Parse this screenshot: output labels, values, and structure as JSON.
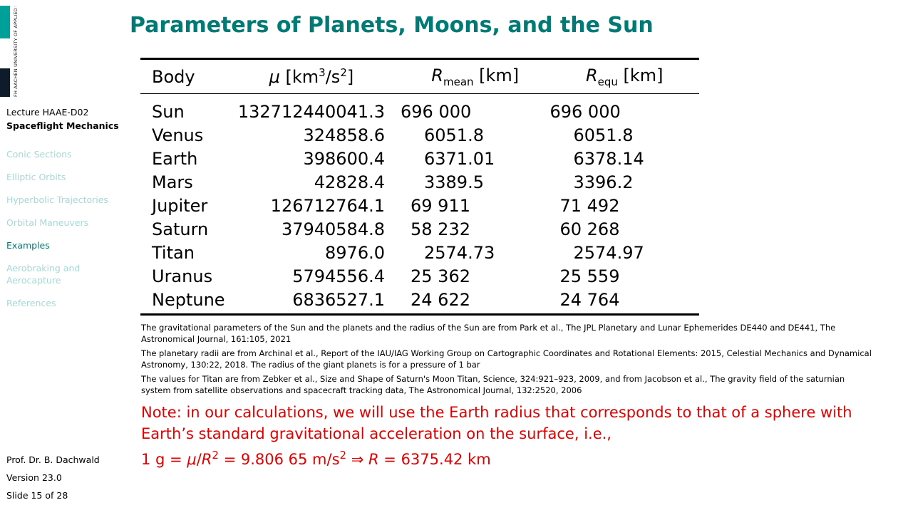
{
  "sidebar": {
    "logo_text": "FH AACHEN UNIVERSITY OF APPLIED SCIENCES",
    "lecture": "Lecture HAAE-D02",
    "course": "Spaceflight Mechanics",
    "nav": [
      "Conic Sections",
      "Elliptic Orbits",
      "Hyperbolic Trajectories",
      "Orbital Maneuvers",
      "Examples",
      "Aerobraking and Aerocapture",
      "References"
    ],
    "active_nav": "Examples",
    "author": "Prof. Dr. B. Dachwald",
    "version": "Version 23.0",
    "slide": "Slide 15 of 28"
  },
  "slide": {
    "title": "Parameters of Planets, Moons, and the Sun",
    "table": {
      "headers": {
        "body": "Body",
        "mu_symbol": "μ",
        "mu_unit_pre": " [km",
        "mu_sup1": "3",
        "mu_unit_mid": "/s",
        "mu_sup2": "2",
        "mu_unit_post": "]",
        "rmean_symbol": "R",
        "rmean_sub": "mean",
        "rmean_unit": " [km]",
        "requ_symbol": "R",
        "requ_sub": "equ",
        "requ_unit": " [km]"
      },
      "rows": [
        {
          "body": "Sun",
          "mu": "132712440041.3",
          "r_mean": "696 000",
          "r_equ": "696 000"
        },
        {
          "body": "Venus",
          "mu": "324858.6",
          "r_mean": "6051.8",
          "r_equ": "6051.8"
        },
        {
          "body": "Earth",
          "mu": "398600.4",
          "r_mean": "6371.01",
          "r_equ": "6378.14"
        },
        {
          "body": "Mars",
          "mu": "42828.4",
          "r_mean": "3389.5",
          "r_equ": "3396.2"
        },
        {
          "body": "Jupiter",
          "mu": "126712764.1",
          "r_mean": "69 911",
          "r_equ": "71 492"
        },
        {
          "body": "Saturn",
          "mu": "37940584.8",
          "r_mean": "58 232",
          "r_equ": "60 268"
        },
        {
          "body": "Titan",
          "mu": "8976.0",
          "r_mean": "2574.73",
          "r_equ": "2574.97"
        },
        {
          "body": "Uranus",
          "mu": "5794556.4",
          "r_mean": "25 362",
          "r_equ": "25 559"
        },
        {
          "body": "Neptune",
          "mu": "6836527.1",
          "r_mean": "24 622",
          "r_equ": "24 764"
        }
      ]
    },
    "notes": [
      "The gravitational parameters of the Sun and the planets and the radius of the Sun are from Park et al., The JPL Planetary and Lunar Ephemerides DE440 and DE441, The Astronomical Journal, 161:105, 2021",
      "The planetary radii are from Archinal et al., Report of the IAU/IAG Working Group on Cartographic Coordinates and Rotational Elements: 2015, Celestial Mechanics and Dynamical Astronomy, 130:22, 2018. The radius of the giant planets is for a pressure of 1 bar",
      "The values for Titan are from Zebker et al., Size and Shape of Saturn's Moon Titan, Science, 324:921–923, 2009, and from Jacobson et al., The gravity field of the saturnian system from satellite observations and spacecraft tracking data, The Astronomical Journal, 132:2520, 2006"
    ],
    "remark": {
      "line1": "Note: in our calculations, we will use the Earth radius that corresponds to that of a sphere with Earth’s standard gravitational acceleration on the surface, i.e.,",
      "formula_g": "1 g = ",
      "formula_mu": "μ",
      "formula_slash": "/",
      "formula_R": "R",
      "formula_sup": "2",
      "formula_value": " = 9.806 65 m/s",
      "formula_sup2": "2",
      "formula_arrow": " ⇒ ",
      "formula_R2": "R",
      "formula_result": " = 6375.42 km"
    },
    "colors": {
      "title": "#007a75",
      "remark": "#e00000",
      "nav_inactive": "#a6d8d6",
      "nav_active": "#007a75",
      "logo_teal": "#00a09a"
    }
  }
}
